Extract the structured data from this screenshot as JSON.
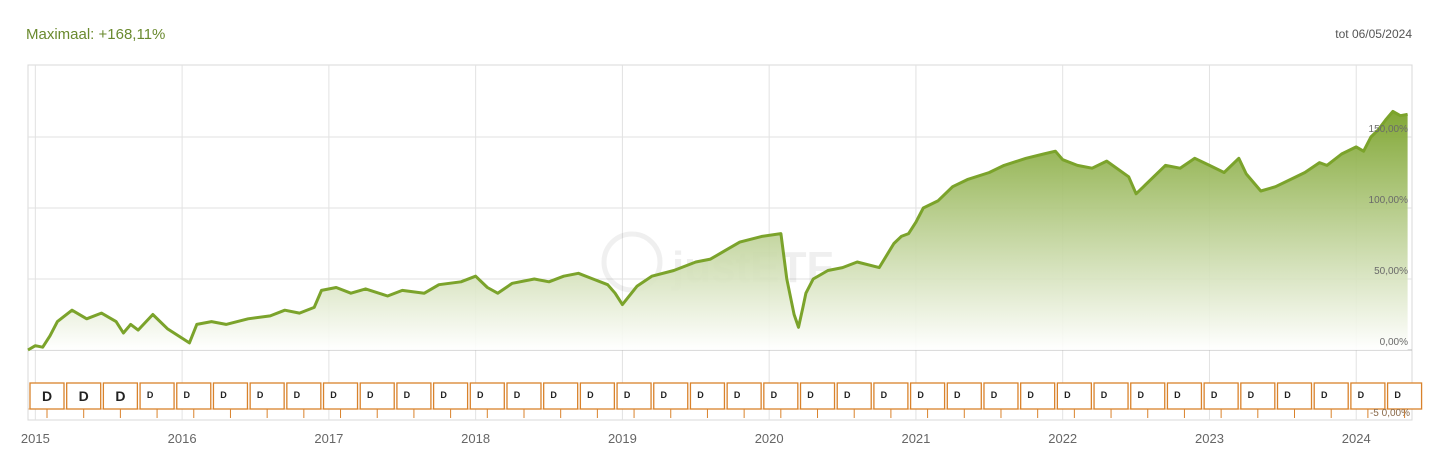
{
  "header": {
    "max_label": "Maximaal: +168,11%",
    "until_label": "tot 06/05/2024"
  },
  "colors": {
    "line": "#7ba32b",
    "fill_top": "#8fb94a",
    "dividend_border": "#d9822b"
  },
  "chart_data": {
    "type": "area",
    "title": "",
    "xlabel": "",
    "ylabel": "",
    "xlim": [
      2014.95,
      2024.38
    ],
    "ylim": [
      -6,
      200
    ],
    "grid": true,
    "y_tick_values": [
      0,
      50,
      100,
      150
    ],
    "y_tick_labels": [
      "0,00%",
      "50,00%",
      "100,00%",
      "150,00%"
    ],
    "x_tick_values": [
      2015,
      2016,
      2017,
      2018,
      2019,
      2020,
      2021,
      2022,
      2023,
      2024
    ],
    "x_tick_labels": [
      "2015",
      "2016",
      "2017",
      "2018",
      "2019",
      "2020",
      "2021",
      "2022",
      "2023",
      "2024"
    ],
    "series": [
      {
        "x": [
          2014.95,
          2015.0,
          2015.05,
          2015.1,
          2015.15,
          2015.25,
          2015.35,
          2015.45,
          2015.55,
          2015.6,
          2015.65,
          2015.7,
          2015.8,
          2015.9,
          2016.05,
          2016.1,
          2016.2,
          2016.3,
          2016.45,
          2016.6,
          2016.7,
          2016.8,
          2016.9,
          2016.95,
          2017.05,
          2017.15,
          2017.25,
          2017.4,
          2017.5,
          2017.65,
          2017.75,
          2017.9,
          2018.0,
          2018.08,
          2018.15,
          2018.25,
          2018.4,
          2018.5,
          2018.6,
          2018.7,
          2018.8,
          2018.9,
          2018.95,
          2019.0,
          2019.1,
          2019.2,
          2019.35,
          2019.5,
          2019.6,
          2019.7,
          2019.8,
          2019.95,
          2020.08,
          2020.12,
          2020.17,
          2020.2,
          2020.23,
          2020.25,
          2020.3,
          2020.4,
          2020.5,
          2020.6,
          2020.75,
          2020.85,
          2020.9,
          2020.95,
          2021.0,
          2021.05,
          2021.15,
          2021.25,
          2021.35,
          2021.5,
          2021.6,
          2021.75,
          2021.87,
          2021.95,
          2022.0,
          2022.1,
          2022.2,
          2022.3,
          2022.45,
          2022.5,
          2022.6,
          2022.7,
          2022.8,
          2022.9,
          2023.0,
          2023.1,
          2023.2,
          2023.25,
          2023.35,
          2023.45,
          2023.55,
          2023.65,
          2023.75,
          2023.8,
          2023.9,
          2024.0,
          2024.05,
          2024.1,
          2024.15,
          2024.2,
          2024.25,
          2024.3,
          2024.35
        ],
        "values": [
          0,
          3,
          2,
          10,
          20,
          28,
          22,
          26,
          20,
          12,
          18,
          14,
          25,
          15,
          5,
          18,
          20,
          18,
          22,
          24,
          28,
          26,
          30,
          42,
          44,
          40,
          43,
          38,
          42,
          40,
          46,
          48,
          52,
          44,
          40,
          47,
          50,
          48,
          52,
          54,
          50,
          46,
          40,
          32,
          45,
          52,
          56,
          62,
          64,
          70,
          76,
          80,
          82,
          50,
          25,
          16,
          30,
          40,
          50,
          56,
          58,
          62,
          58,
          75,
          80,
          82,
          90,
          100,
          105,
          115,
          120,
          125,
          130,
          135,
          138,
          140,
          134,
          130,
          128,
          133,
          122,
          110,
          120,
          130,
          128,
          135,
          130,
          125,
          135,
          124,
          112,
          115,
          120,
          125,
          132,
          130,
          138,
          143,
          140,
          150,
          155,
          162,
          168,
          165,
          166
        ]
      }
    ],
    "dividend_markers": {
      "label": "D",
      "x": [
        2014.95,
        2015.2,
        2015.45,
        2015.7,
        2015.95,
        2016.2,
        2016.45,
        2016.7,
        2016.95,
        2017.2,
        2017.45,
        2017.7,
        2017.95,
        2018.2,
        2018.45,
        2018.7,
        2018.95,
        2019.2,
        2019.45,
        2019.7,
        2019.95,
        2020.2,
        2020.45,
        2020.7,
        2020.95,
        2021.2,
        2021.45,
        2021.7,
        2021.95,
        2022.2,
        2022.45,
        2022.7,
        2022.95,
        2023.2,
        2023.45,
        2023.7,
        2023.95,
        2024.2
      ],
      "bottom_label": "-5 0,00%"
    },
    "watermark": "justETF"
  }
}
